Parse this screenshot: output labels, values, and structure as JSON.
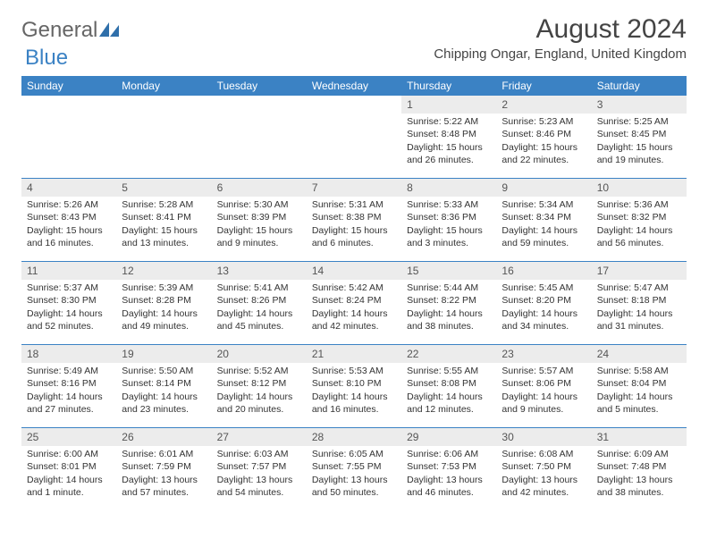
{
  "brand": {
    "word1": "General",
    "word2": "Blue"
  },
  "title": {
    "month_year": "August 2024",
    "location": "Chipping Ongar, England, United Kingdom"
  },
  "colors": {
    "header_bg": "#3b82c4",
    "header_text": "#ffffff",
    "daynum_bg": "#ececec",
    "border": "#3b82c4"
  },
  "day_headers": [
    "Sunday",
    "Monday",
    "Tuesday",
    "Wednesday",
    "Thursday",
    "Friday",
    "Saturday"
  ],
  "weeks": [
    [
      {
        "n": "",
        "sr": "",
        "ss": "",
        "dl": ""
      },
      {
        "n": "",
        "sr": "",
        "ss": "",
        "dl": ""
      },
      {
        "n": "",
        "sr": "",
        "ss": "",
        "dl": ""
      },
      {
        "n": "",
        "sr": "",
        "ss": "",
        "dl": ""
      },
      {
        "n": "1",
        "sr": "Sunrise: 5:22 AM",
        "ss": "Sunset: 8:48 PM",
        "dl": "Daylight: 15 hours and 26 minutes."
      },
      {
        "n": "2",
        "sr": "Sunrise: 5:23 AM",
        "ss": "Sunset: 8:46 PM",
        "dl": "Daylight: 15 hours and 22 minutes."
      },
      {
        "n": "3",
        "sr": "Sunrise: 5:25 AM",
        "ss": "Sunset: 8:45 PM",
        "dl": "Daylight: 15 hours and 19 minutes."
      }
    ],
    [
      {
        "n": "4",
        "sr": "Sunrise: 5:26 AM",
        "ss": "Sunset: 8:43 PM",
        "dl": "Daylight: 15 hours and 16 minutes."
      },
      {
        "n": "5",
        "sr": "Sunrise: 5:28 AM",
        "ss": "Sunset: 8:41 PM",
        "dl": "Daylight: 15 hours and 13 minutes."
      },
      {
        "n": "6",
        "sr": "Sunrise: 5:30 AM",
        "ss": "Sunset: 8:39 PM",
        "dl": "Daylight: 15 hours and 9 minutes."
      },
      {
        "n": "7",
        "sr": "Sunrise: 5:31 AM",
        "ss": "Sunset: 8:38 PM",
        "dl": "Daylight: 15 hours and 6 minutes."
      },
      {
        "n": "8",
        "sr": "Sunrise: 5:33 AM",
        "ss": "Sunset: 8:36 PM",
        "dl": "Daylight: 15 hours and 3 minutes."
      },
      {
        "n": "9",
        "sr": "Sunrise: 5:34 AM",
        "ss": "Sunset: 8:34 PM",
        "dl": "Daylight: 14 hours and 59 minutes."
      },
      {
        "n": "10",
        "sr": "Sunrise: 5:36 AM",
        "ss": "Sunset: 8:32 PM",
        "dl": "Daylight: 14 hours and 56 minutes."
      }
    ],
    [
      {
        "n": "11",
        "sr": "Sunrise: 5:37 AM",
        "ss": "Sunset: 8:30 PM",
        "dl": "Daylight: 14 hours and 52 minutes."
      },
      {
        "n": "12",
        "sr": "Sunrise: 5:39 AM",
        "ss": "Sunset: 8:28 PM",
        "dl": "Daylight: 14 hours and 49 minutes."
      },
      {
        "n": "13",
        "sr": "Sunrise: 5:41 AM",
        "ss": "Sunset: 8:26 PM",
        "dl": "Daylight: 14 hours and 45 minutes."
      },
      {
        "n": "14",
        "sr": "Sunrise: 5:42 AM",
        "ss": "Sunset: 8:24 PM",
        "dl": "Daylight: 14 hours and 42 minutes."
      },
      {
        "n": "15",
        "sr": "Sunrise: 5:44 AM",
        "ss": "Sunset: 8:22 PM",
        "dl": "Daylight: 14 hours and 38 minutes."
      },
      {
        "n": "16",
        "sr": "Sunrise: 5:45 AM",
        "ss": "Sunset: 8:20 PM",
        "dl": "Daylight: 14 hours and 34 minutes."
      },
      {
        "n": "17",
        "sr": "Sunrise: 5:47 AM",
        "ss": "Sunset: 8:18 PM",
        "dl": "Daylight: 14 hours and 31 minutes."
      }
    ],
    [
      {
        "n": "18",
        "sr": "Sunrise: 5:49 AM",
        "ss": "Sunset: 8:16 PM",
        "dl": "Daylight: 14 hours and 27 minutes."
      },
      {
        "n": "19",
        "sr": "Sunrise: 5:50 AM",
        "ss": "Sunset: 8:14 PM",
        "dl": "Daylight: 14 hours and 23 minutes."
      },
      {
        "n": "20",
        "sr": "Sunrise: 5:52 AM",
        "ss": "Sunset: 8:12 PM",
        "dl": "Daylight: 14 hours and 20 minutes."
      },
      {
        "n": "21",
        "sr": "Sunrise: 5:53 AM",
        "ss": "Sunset: 8:10 PM",
        "dl": "Daylight: 14 hours and 16 minutes."
      },
      {
        "n": "22",
        "sr": "Sunrise: 5:55 AM",
        "ss": "Sunset: 8:08 PM",
        "dl": "Daylight: 14 hours and 12 minutes."
      },
      {
        "n": "23",
        "sr": "Sunrise: 5:57 AM",
        "ss": "Sunset: 8:06 PM",
        "dl": "Daylight: 14 hours and 9 minutes."
      },
      {
        "n": "24",
        "sr": "Sunrise: 5:58 AM",
        "ss": "Sunset: 8:04 PM",
        "dl": "Daylight: 14 hours and 5 minutes."
      }
    ],
    [
      {
        "n": "25",
        "sr": "Sunrise: 6:00 AM",
        "ss": "Sunset: 8:01 PM",
        "dl": "Daylight: 14 hours and 1 minute."
      },
      {
        "n": "26",
        "sr": "Sunrise: 6:01 AM",
        "ss": "Sunset: 7:59 PM",
        "dl": "Daylight: 13 hours and 57 minutes."
      },
      {
        "n": "27",
        "sr": "Sunrise: 6:03 AM",
        "ss": "Sunset: 7:57 PM",
        "dl": "Daylight: 13 hours and 54 minutes."
      },
      {
        "n": "28",
        "sr": "Sunrise: 6:05 AM",
        "ss": "Sunset: 7:55 PM",
        "dl": "Daylight: 13 hours and 50 minutes."
      },
      {
        "n": "29",
        "sr": "Sunrise: 6:06 AM",
        "ss": "Sunset: 7:53 PM",
        "dl": "Daylight: 13 hours and 46 minutes."
      },
      {
        "n": "30",
        "sr": "Sunrise: 6:08 AM",
        "ss": "Sunset: 7:50 PM",
        "dl": "Daylight: 13 hours and 42 minutes."
      },
      {
        "n": "31",
        "sr": "Sunrise: 6:09 AM",
        "ss": "Sunset: 7:48 PM",
        "dl": "Daylight: 13 hours and 38 minutes."
      }
    ]
  ]
}
